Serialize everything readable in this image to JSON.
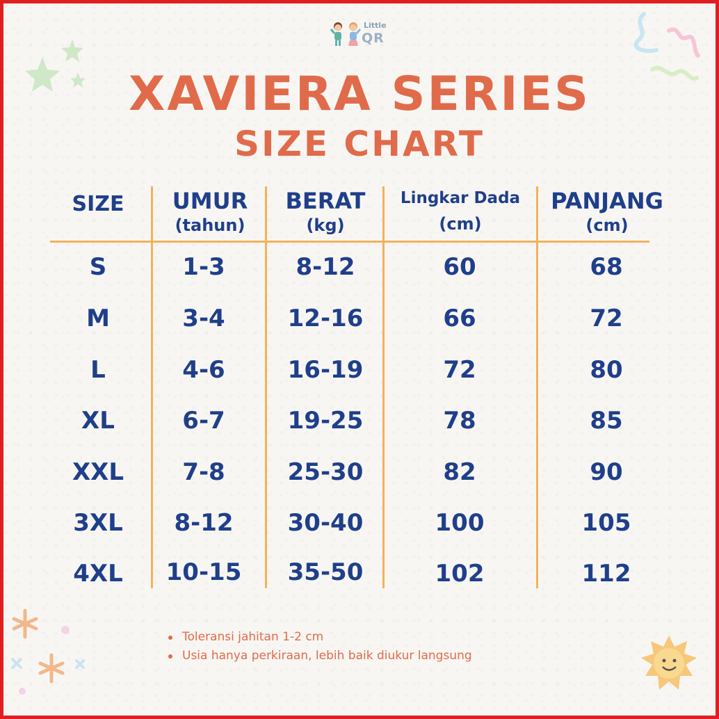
{
  "brand": {
    "small": "Little",
    "big": "QR"
  },
  "title": "XAVIERA SERIES",
  "subtitle": "SIZE CHART",
  "headers": [
    {
      "line1": "SIZE",
      "line2": ""
    },
    {
      "line1": "UMUR",
      "line2": "(tahun)"
    },
    {
      "line1": "BERAT",
      "line2": "(kg)"
    },
    {
      "line1": "Lingkar Dada",
      "line2": "(cm)"
    },
    {
      "line1": "PANJANG",
      "line2": "(cm)"
    }
  ],
  "rows": [
    [
      "S",
      "1-3",
      "8-12",
      "60",
      "68"
    ],
    [
      "M",
      "3-4",
      "12-16",
      "66",
      "72"
    ],
    [
      "L",
      "4-6",
      "16-19",
      "72",
      "80"
    ],
    [
      "XL",
      "6-7",
      "19-25",
      "78",
      "85"
    ],
    [
      "XXL",
      "7-8",
      "25-30",
      "82",
      "90"
    ],
    [
      "3XL",
      "8-12",
      "30-40",
      "100",
      "105"
    ],
    [
      "4XL",
      "10-15",
      "35-50",
      "102",
      "112"
    ]
  ],
  "notes": [
    "Toleransi jahitan 1-2 cm",
    "Usia hanya perkiraan, lebih baik diukur langsung"
  ],
  "colors": {
    "title": "#e06b4a",
    "table_text": "#1f3f8a",
    "divider": "#f1b35a",
    "border": "#e02020"
  },
  "icons": [
    "kids-logo-icon",
    "star-icon",
    "squiggle-icon",
    "sun-icon",
    "sparkle-icon"
  ]
}
